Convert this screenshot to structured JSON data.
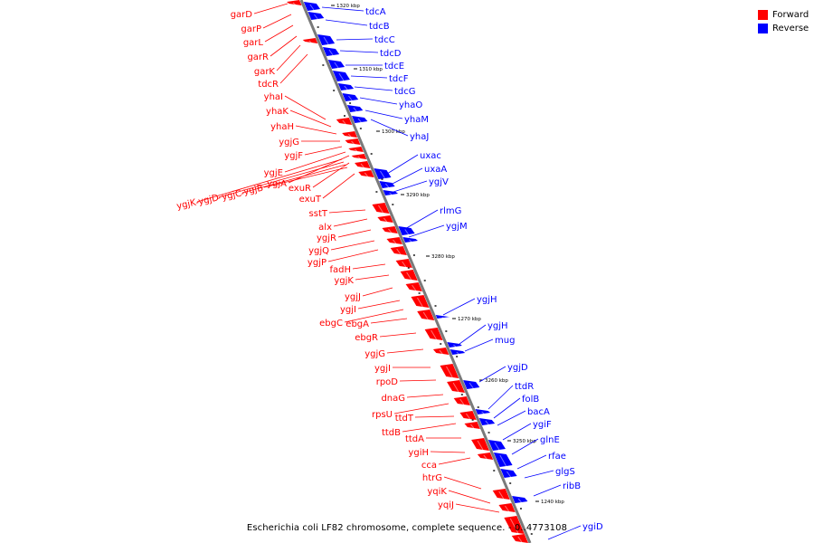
{
  "legend": {
    "forward_label": "Forward",
    "reverse_label": "Reverse",
    "forward_color": "#ff0000",
    "reverse_color": "#0000ff"
  },
  "caption": "Escherichia coli LF82 chromosome, complete sequence. - 0..4773108",
  "scale_labels": [
    "1320 kbp",
    "1310 kbp",
    "1300 kbp",
    "3290 kbp",
    "3280 kbp",
    "1270 kbp",
    "3260 kbp",
    "3250 kbp",
    "1240 kbp"
  ],
  "reverse_genes": [
    "tdcA",
    "tdcB",
    "tdcC",
    "tdcD",
    "tdcE",
    "tdcF",
    "tdcG",
    "yhaO",
    "yhaM",
    "yhaJ",
    "uxac",
    "uxaA",
    "ygjV",
    "rlmG",
    "ygjM",
    "ygjH",
    "ygjH",
    "mug",
    "ygjD",
    "ttdR",
    "folB",
    "bacA",
    "ygiF",
    "glnE",
    "rfae",
    "glgS",
    "ribB",
    "ygiD"
  ],
  "forward_genes_right": [
    "garD",
    "garP",
    "garL",
    "garR",
    "garK",
    "tdcR",
    "yhaI",
    "yhaK",
    "yhaH",
    "ygjG",
    "ygjF",
    "ygjE",
    "ygjA",
    "exuR",
    "exuT",
    "sstT",
    "alx",
    "ygjR",
    "ygjQ",
    "ygjP",
    "fadH",
    "ygjK",
    "ygjJ",
    "ygjI",
    "ebgC",
    "ebgA",
    "ebgR",
    "ygjG",
    "ygjI",
    "rpoD",
    "dnaG",
    "rpsU",
    "ttdT",
    "ttdB",
    "ttdA",
    "ygiH",
    "cca",
    "htrG",
    "yqiK",
    "yqiJ"
  ],
  "forward_genes_rotated": [
    "ygjK",
    "ygjD",
    "ygjC",
    "ygjB"
  ]
}
